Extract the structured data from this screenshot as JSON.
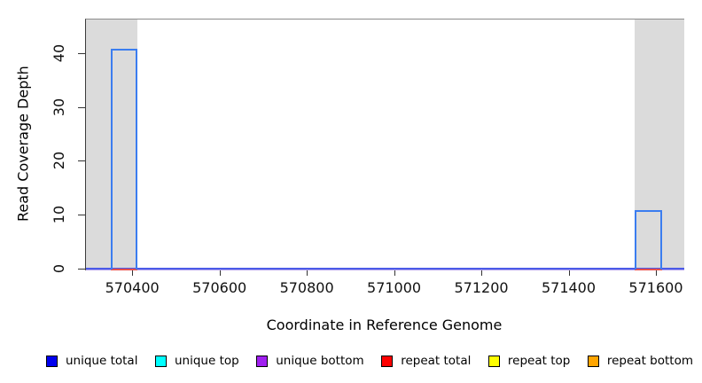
{
  "chart_data": {
    "type": "area",
    "title": "",
    "xlabel": "Coordinate in Reference Genome",
    "ylabel": "Read Coverage Depth",
    "x_range": [
      570292,
      571663
    ],
    "y_range": [
      0,
      46.4
    ],
    "x_ticks": [
      570400,
      570600,
      570800,
      571000,
      571200,
      571400,
      571600
    ],
    "y_ticks": [
      0,
      10,
      20,
      30,
      40
    ],
    "grid": "off",
    "legend_position": "bottom",
    "masked_regions": [
      {
        "start": 570292,
        "end": 570410
      },
      {
        "start": 571549,
        "end": 571663
      }
    ],
    "series": [
      {
        "name": "unique total",
        "bars": [
          {
            "start": 570348,
            "end": 570410,
            "depth": 41
          },
          {
            "start": 571549,
            "end": 571612,
            "depth": 11
          }
        ]
      },
      {
        "name": "repeat total",
        "zero_segments": [
          {
            "start": 570348,
            "end": 570410,
            "depth": 0
          },
          {
            "start": 571549,
            "end": 571612,
            "depth": 0
          }
        ]
      }
    ],
    "legend": [
      {
        "label": "unique total",
        "color": "#0000ee"
      },
      {
        "label": "unique top",
        "color": "#00ffff"
      },
      {
        "label": "unique bottom",
        "color": "#a020f0"
      },
      {
        "label": "repeat total",
        "color": "#ff0000"
      },
      {
        "label": "repeat top",
        "color": "#ffff00"
      },
      {
        "label": "repeat bottom",
        "color": "#ffa500"
      }
    ],
    "colors": {
      "masked_region_fill": "#dbdbdb",
      "unique_total_line": "#3b7df0",
      "zero_line_blue": "#4b5be8",
      "zero_line_purple": "#b2a0ec",
      "repeat_total_zero": "#e8514d"
    }
  }
}
